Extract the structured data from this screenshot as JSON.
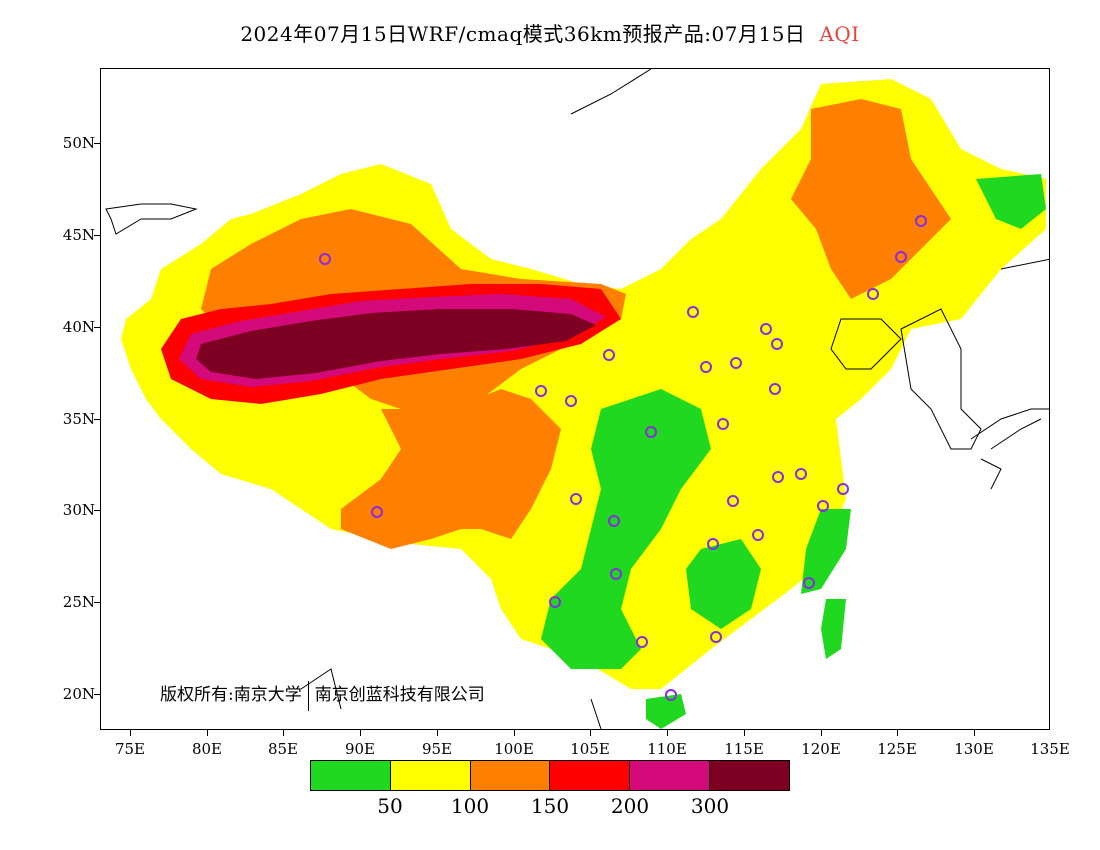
{
  "title": {
    "text": "2024年07月15日WRF/cmaq模式36km预报产品:07月15日",
    "variable": "AQI"
  },
  "map": {
    "lat_labels": [
      "50N",
      "45N",
      "40N",
      "35N",
      "30N",
      "25N",
      "20N"
    ],
    "lon_labels": [
      "75E",
      "80E",
      "85E",
      "90E",
      "95E",
      "100E",
      "105E",
      "110E",
      "115E",
      "120E",
      "125E",
      "130E",
      "135E"
    ],
    "extent": {
      "lon_min": 73,
      "lon_max": 135,
      "lat_min": 18,
      "lat_max": 54
    },
    "colors": {
      "good": "#1fd81f",
      "moderate": "#ffff00",
      "usg": "#ff8000",
      "unhealthy": "#ff0000",
      "very_unhealthy": "#d40a7a",
      "hazardous": "#7d0023",
      "station_marker": "#8a2be2",
      "ocean": "#ffffff"
    }
  },
  "copyright": {
    "part1": "版权所有:南京大学",
    "part2": "南京创蓝科技有限公司"
  },
  "legend": {
    "colors": [
      "#1fd81f",
      "#ffff00",
      "#ff8000",
      "#ff0000",
      "#d40a7a",
      "#7d0023"
    ],
    "values": [
      "50",
      "100",
      "150",
      "200",
      "300"
    ]
  }
}
